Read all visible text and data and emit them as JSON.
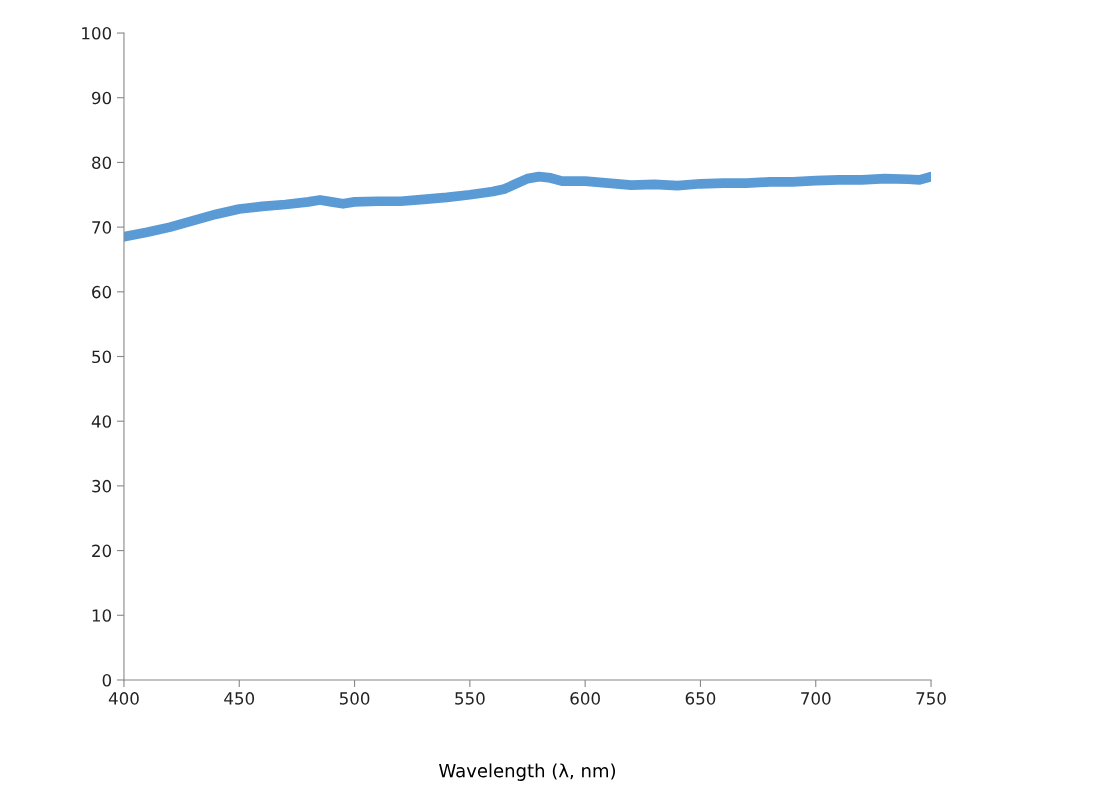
{
  "chart_data": {
    "type": "line",
    "xlabel": "Wavelength (λ, nm)",
    "x": [
      400,
      410,
      420,
      430,
      440,
      450,
      460,
      470,
      480,
      485,
      490,
      495,
      500,
      510,
      520,
      530,
      540,
      550,
      560,
      565,
      570,
      575,
      580,
      585,
      590,
      600,
      610,
      620,
      630,
      640,
      650,
      660,
      670,
      680,
      690,
      700,
      710,
      720,
      730,
      740,
      745,
      750
    ],
    "series": [
      {
        "color": "#5b9bd5",
        "values": [
          68.5,
          69.2,
          70.0,
          71.0,
          72.0,
          72.8,
          73.2,
          73.5,
          73.9,
          74.2,
          73.9,
          73.6,
          73.9,
          74.0,
          74.0,
          74.3,
          74.6,
          75.0,
          75.5,
          75.9,
          76.7,
          77.5,
          77.8,
          77.6,
          77.1,
          77.1,
          76.8,
          76.5,
          76.6,
          76.4,
          76.7,
          76.8,
          76.8,
          77.0,
          77.0,
          77.2,
          77.3,
          77.3,
          77.5,
          77.4,
          77.3,
          77.8
        ]
      }
    ],
    "xlim": [
      400,
      750
    ],
    "xticks": [
      400,
      450,
      500,
      550,
      600,
      650,
      700,
      750
    ],
    "ylim": [
      0,
      100
    ],
    "yticks": [
      0,
      10,
      20,
      30,
      40,
      50,
      60,
      70,
      80,
      90,
      100
    ],
    "grid": false,
    "legend": false
  }
}
